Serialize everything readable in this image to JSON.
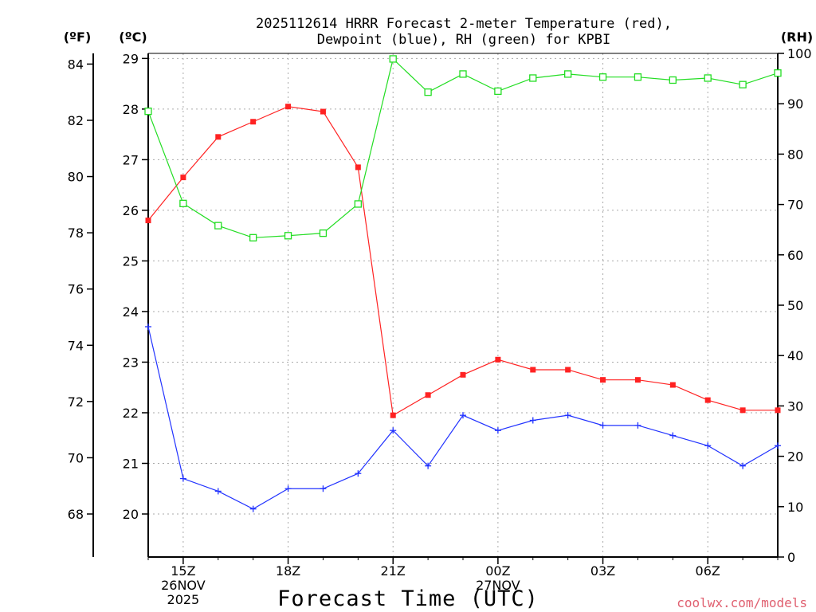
{
  "chart_data": {
    "type": "line",
    "title_lines": [
      "2025112614 HRRR Forecast 2-meter Temperature (red),",
      "Dewpoint (blue), RH (green) for KPBI"
    ],
    "units": {
      "fahrenheit": "(ºF)",
      "celsius": "(ºC)",
      "rh": "(RH)"
    },
    "xlabel": "Forecast Time (UTC)",
    "credit": "coolwx.com/models",
    "x": [
      14,
      15,
      16,
      17,
      18,
      19,
      20,
      21,
      22,
      23,
      24,
      25,
      26,
      27,
      28,
      29,
      30,
      31,
      32
    ],
    "xlim": [
      14,
      32
    ],
    "x_ticks": [
      {
        "x": 15,
        "lines": [
          "15Z",
          "26NOV",
          "2025"
        ]
      },
      {
        "x": 18,
        "lines": [
          "18Z"
        ]
      },
      {
        "x": 21,
        "lines": [
          "21Z"
        ]
      },
      {
        "x": 24,
        "lines": [
          "00Z",
          "27NOV"
        ]
      },
      {
        "x": 27,
        "lines": [
          "03Z"
        ]
      },
      {
        "x": 30,
        "lines": [
          "06Z"
        ]
      }
    ],
    "y_left_c": {
      "min": 19.15,
      "max": 29.1,
      "ticks": [
        20,
        21,
        22,
        23,
        24,
        25,
        26,
        27,
        28,
        29
      ]
    },
    "y_left_f": {
      "ticks": [
        68,
        70,
        72,
        74,
        76,
        78,
        80,
        82,
        84
      ]
    },
    "y_right_rh": {
      "min": 0,
      "max": 100,
      "ticks": [
        0,
        10,
        20,
        30,
        40,
        50,
        60,
        70,
        80,
        90,
        100
      ]
    },
    "series": [
      {
        "name": "Temperature",
        "axis": "celsius",
        "color": "#ff2222",
        "marker": "filled-square",
        "values": [
          25.8,
          26.65,
          27.45,
          27.75,
          28.05,
          27.95,
          26.85,
          21.95,
          22.35,
          22.75,
          23.05,
          22.85,
          22.85,
          22.65,
          22.65,
          22.55,
          22.25,
          22.05,
          22.05
        ]
      },
      {
        "name": "Dewpoint",
        "axis": "celsius",
        "color": "#2233ff",
        "marker": "plus",
        "values": [
          23.7,
          20.7,
          20.45,
          20.1,
          20.5,
          20.5,
          20.8,
          21.65,
          20.95,
          21.95,
          21.65,
          21.85,
          21.95,
          21.75,
          21.75,
          21.55,
          21.35,
          20.95,
          21.35
        ]
      },
      {
        "name": "RH",
        "axis": "rh",
        "color": "#22dd22",
        "marker": "open-square",
        "values": [
          88.5,
          70.2,
          65.8,
          63.4,
          63.8,
          64.3,
          70.1,
          98.9,
          92.3,
          95.9,
          92.5,
          95.1,
          95.9,
          95.3,
          95.3,
          94.7,
          95.1,
          93.8,
          96.1
        ]
      }
    ]
  }
}
